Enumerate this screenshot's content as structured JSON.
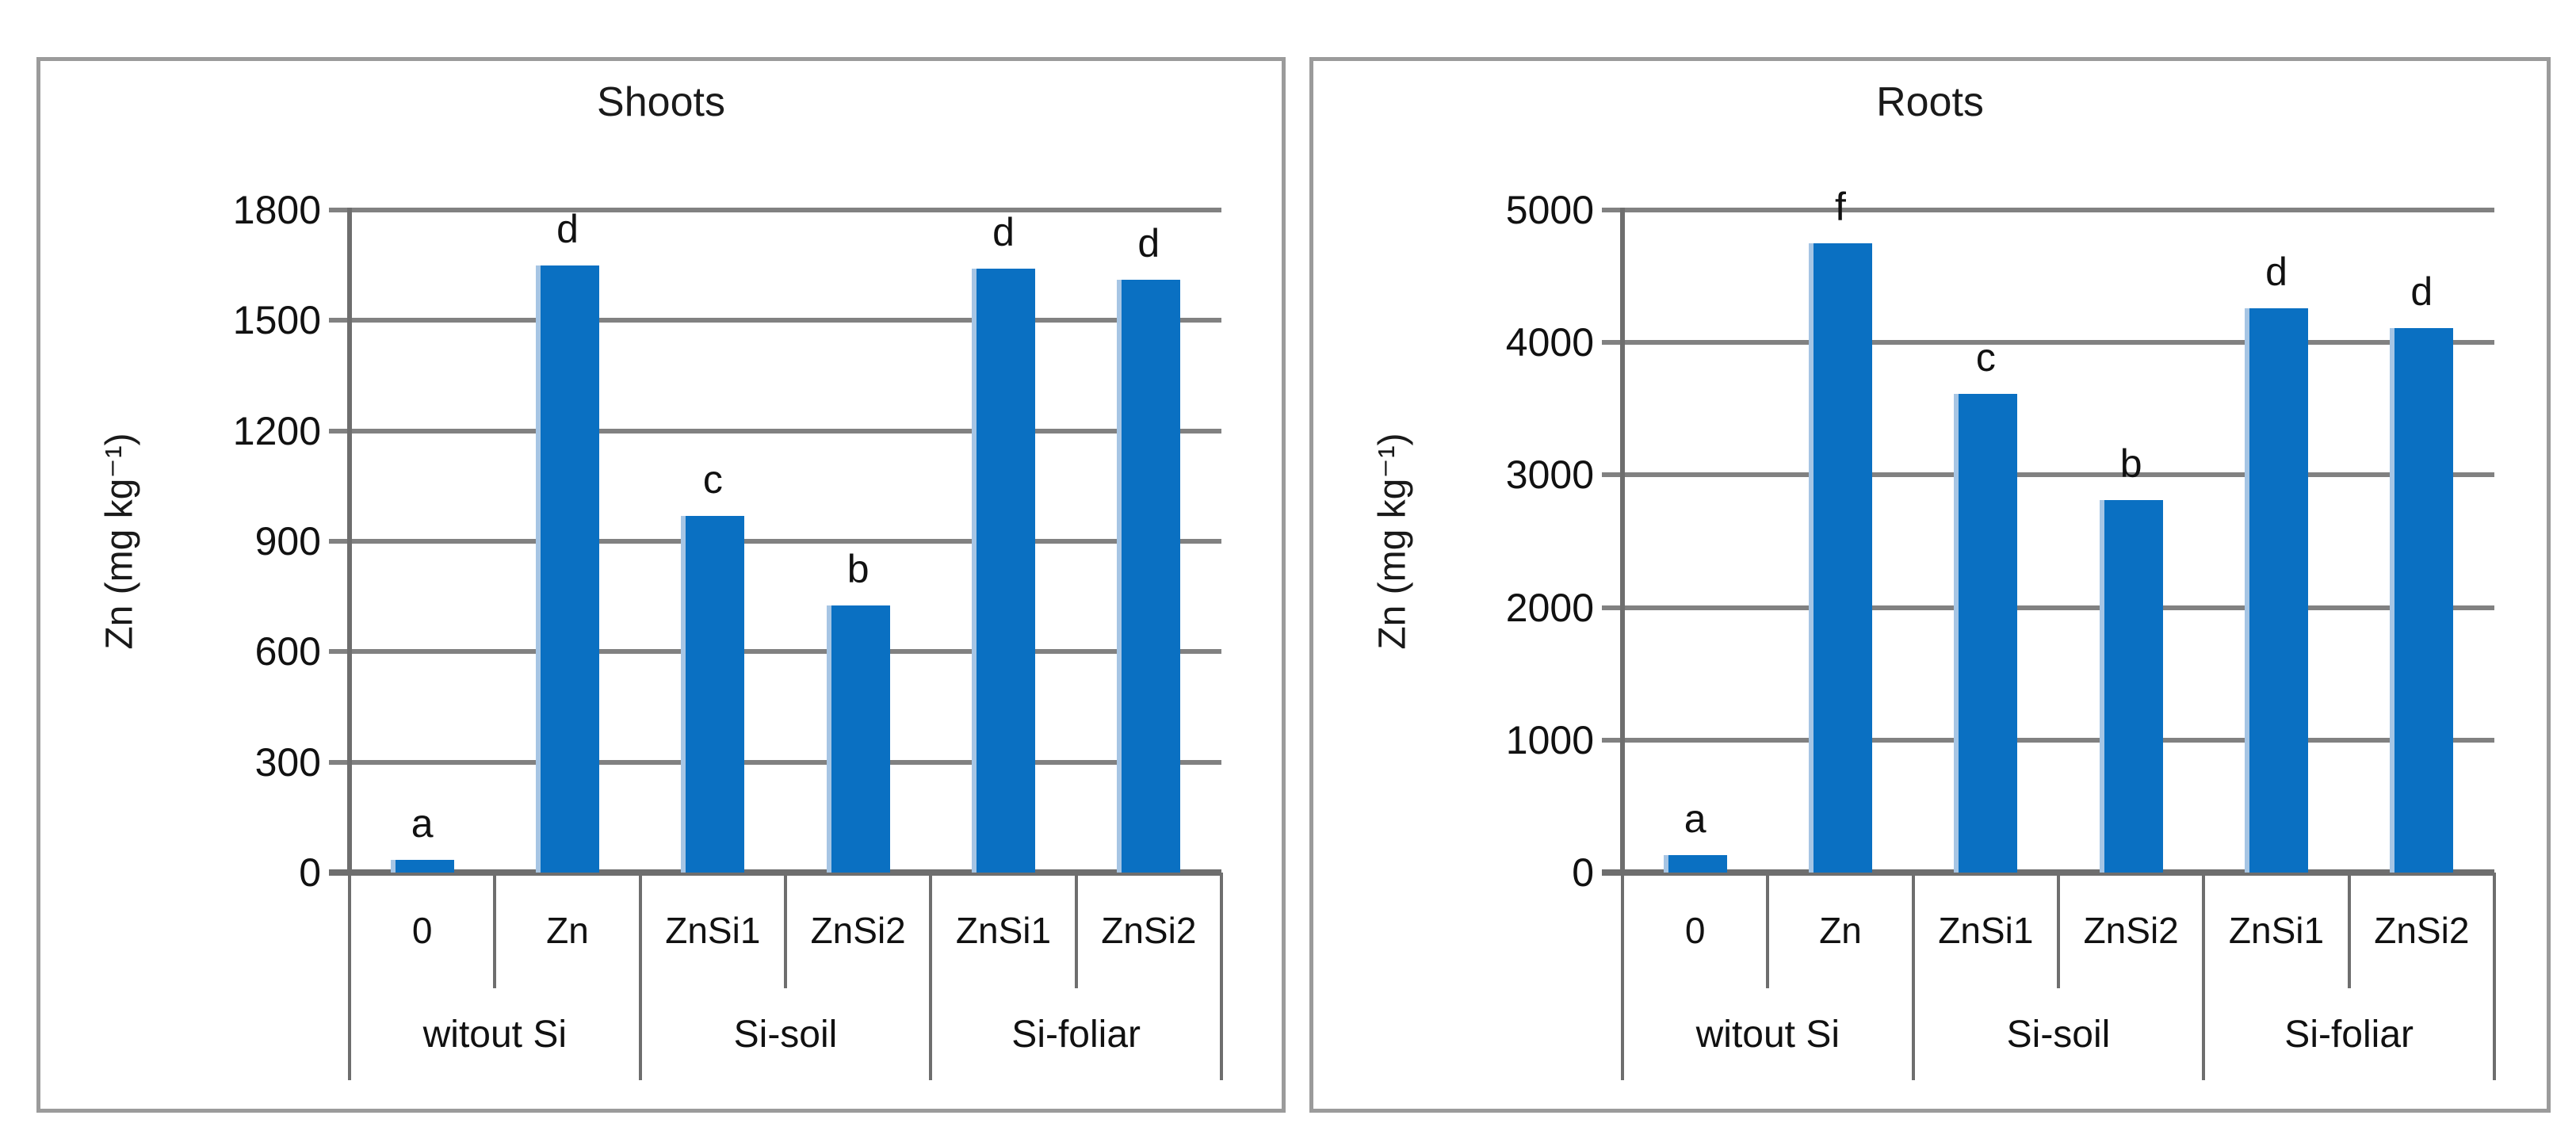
{
  "colors": {
    "bar": "#0a70c2",
    "bar_edge": "#a6c5e4",
    "gridline": "#818181",
    "axis": "#6e6e6e",
    "panel_border": "#9b9b9b",
    "text": "#111111"
  },
  "chart_data": [
    {
      "type": "bar",
      "title": "Shoots",
      "xlabel": "",
      "ylabel": "Zn (mg kg⁻¹)",
      "ylim": [
        0,
        1800
      ],
      "y_ticks": [
        1800,
        1500,
        1200,
        900,
        600,
        300,
        0
      ],
      "grid": true,
      "legend": "none",
      "categories": [
        "0",
        "Zn",
        "ZnSi1",
        "ZnSi2",
        "ZnSi1",
        "ZnSi2"
      ],
      "group_labels": [
        "witout Si",
        "Si-soil",
        "Si-foliar"
      ],
      "group_spans": [
        2,
        2,
        2
      ],
      "values": [
        35,
        1650,
        970,
        725,
        1640,
        1610
      ],
      "sig_letters": [
        "a",
        "d",
        "c",
        "b",
        "d",
        "d"
      ]
    },
    {
      "type": "bar",
      "title": "Roots",
      "xlabel": "",
      "ylabel": "Zn (mg kg⁻¹)",
      "ylim": [
        0,
        5000
      ],
      "y_ticks": [
        5000,
        4000,
        3000,
        2000,
        1000,
        0
      ],
      "grid": true,
      "legend": "none",
      "categories": [
        "0",
        "Zn",
        "ZnSi1",
        "ZnSi2",
        "ZnSi1",
        "ZnSi2"
      ],
      "group_labels": [
        "witout Si",
        "Si-soil",
        "Si-foliar"
      ],
      "group_spans": [
        2,
        2,
        2
      ],
      "values": [
        130,
        4750,
        3610,
        2810,
        4260,
        4110
      ],
      "sig_letters": [
        "a",
        "f",
        "c",
        "b",
        "d",
        "d"
      ]
    }
  ]
}
